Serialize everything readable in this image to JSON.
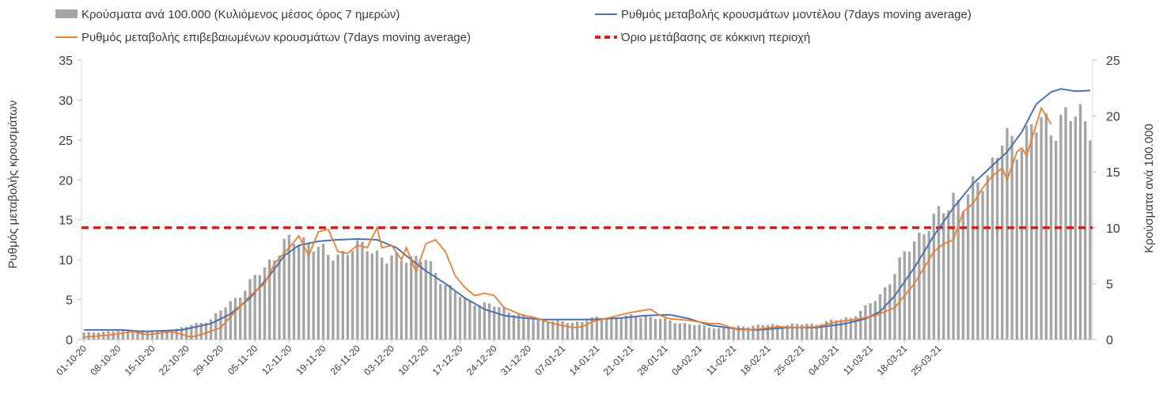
{
  "chart_data": {
    "type": "bar+line",
    "legend": {
      "bars": "Κρούσματα ανά 100.000 (Κυλιόμενος μέσος όρος 7 ημερών)",
      "model": "Ρυθμός μεταβολής κρουσμάτων μοντέλου (7days moving average)",
      "confirmed": "Ρυθμός μεταβολής επιβεβαιωμένων κρουσμάτων (7days moving average)",
      "threshold": "Όριο μετάβασης σε κόκκινη περιοχή"
    },
    "ylabel_left": "Ρυθμός μεταβολής κρουσμάτων",
    "ylabel_right": "Κρούσματα ανά 100.000",
    "ylim_left": [
      0,
      35
    ],
    "yticks_left": [
      "0",
      "5",
      "10",
      "15",
      "20",
      "25",
      "30",
      "35"
    ],
    "ylim_right": [
      0,
      25
    ],
    "yticks_right": [
      "0",
      "5",
      "10",
      "15",
      "20",
      "25"
    ],
    "x_labels": [
      "01-10-20",
      "08-10-20",
      "15-10-20",
      "22-10-20",
      "29-10-20",
      "05-11-20",
      "12-11-20",
      "19-11-20",
      "26-11-20",
      "03-12-20",
      "10-12-20",
      "17-12-20",
      "24-12-20",
      "31-12-20",
      "07-01-21",
      "14-01-21",
      "21-01-21",
      "28-01-21",
      "04-02-21",
      "11-02-21",
      "18-02-21",
      "25-02-21",
      "04-03-21",
      "11-03-21",
      "18-03-21",
      "25-03-21"
    ],
    "threshold_value": 14,
    "bars_keypoints": [
      [
        0,
        0.6
      ],
      [
        8,
        0.8
      ],
      [
        18,
        0.8
      ],
      [
        26,
        1.8
      ],
      [
        33,
        4.5
      ],
      [
        37,
        6.5
      ],
      [
        41,
        8.5
      ],
      [
        45,
        9.0
      ],
      [
        50,
        7.5
      ],
      [
        55,
        8.0
      ],
      [
        58,
        8.5
      ],
      [
        62,
        7.0
      ],
      [
        66,
        7.5
      ],
      [
        70,
        7.0
      ],
      [
        74,
        5.0
      ],
      [
        78,
        3.5
      ],
      [
        84,
        3.0
      ],
      [
        92,
        1.8
      ],
      [
        100,
        1.5
      ],
      [
        106,
        2.0
      ],
      [
        115,
        2.1
      ],
      [
        122,
        1.5
      ],
      [
        130,
        1.0
      ],
      [
        135,
        1.2
      ],
      [
        140,
        1.3
      ],
      [
        150,
        1.4
      ],
      [
        157,
        2.0
      ],
      [
        160,
        2.8
      ],
      [
        163,
        4.0
      ],
      [
        166,
        6.0
      ],
      [
        170,
        9.0
      ],
      [
        175,
        11.0
      ],
      [
        178,
        13.0
      ],
      [
        180,
        12.0
      ],
      [
        183,
        14.0
      ],
      [
        185,
        15.0
      ],
      [
        188,
        17.5
      ],
      [
        191,
        17.5
      ],
      [
        194,
        19.0
      ],
      [
        197,
        19.0
      ],
      [
        200,
        19.8
      ]
    ],
    "model_keypoints": [
      [
        0,
        1.2
      ],
      [
        8,
        1.2
      ],
      [
        12,
        1.0
      ],
      [
        20,
        1.2
      ],
      [
        26,
        2.0
      ],
      [
        30,
        3.2
      ],
      [
        34,
        5.2
      ],
      [
        38,
        8.0
      ],
      [
        41,
        10.5
      ],
      [
        44,
        11.8
      ],
      [
        48,
        12.3
      ],
      [
        52,
        12.5
      ],
      [
        56,
        12.6
      ],
      [
        60,
        12.5
      ],
      [
        64,
        11.5
      ],
      [
        67,
        10.0
      ],
      [
        70,
        8.6
      ],
      [
        74,
        7.0
      ],
      [
        78,
        5.2
      ],
      [
        82,
        3.8
      ],
      [
        86,
        3.0
      ],
      [
        90,
        2.7
      ],
      [
        94,
        2.5
      ],
      [
        104,
        2.5
      ],
      [
        110,
        2.7
      ],
      [
        115,
        3.0
      ],
      [
        120,
        3.1
      ],
      [
        124,
        2.6
      ],
      [
        128,
        1.8
      ],
      [
        134,
        1.3
      ],
      [
        138,
        1.2
      ],
      [
        144,
        1.5
      ],
      [
        150,
        1.5
      ],
      [
        156,
        2.0
      ],
      [
        160,
        2.6
      ],
      [
        163,
        3.5
      ],
      [
        166,
        5.5
      ],
      [
        170,
        9.0
      ],
      [
        174,
        13.0
      ],
      [
        178,
        16.5
      ],
      [
        182,
        19.5
      ],
      [
        186,
        21.8
      ],
      [
        189,
        23.5
      ],
      [
        192,
        26.0
      ],
      [
        195,
        29.5
      ],
      [
        198,
        31.0
      ],
      [
        200,
        31.4
      ],
      [
        203,
        31.1
      ],
      [
        206,
        31.2
      ]
    ],
    "confirmed_keypoints": [
      [
        0,
        0.3
      ],
      [
        6,
        0.6
      ],
      [
        10,
        1.0
      ],
      [
        13,
        0.6
      ],
      [
        18,
        1.0
      ],
      [
        22,
        0.3
      ],
      [
        25,
        0.8
      ],
      [
        28,
        1.5
      ],
      [
        31,
        3.5
      ],
      [
        34,
        5.5
      ],
      [
        37,
        7.0
      ],
      [
        39,
        9.5
      ],
      [
        42,
        11.5
      ],
      [
        44,
        13.0
      ],
      [
        46,
        10.5
      ],
      [
        48,
        13.5
      ],
      [
        50,
        13.8
      ],
      [
        52,
        11.0
      ],
      [
        54,
        10.8
      ],
      [
        56,
        11.8
      ],
      [
        58,
        11.5
      ],
      [
        60,
        14.0
      ],
      [
        61,
        11.5
      ],
      [
        63,
        11.8
      ],
      [
        65,
        10.0
      ],
      [
        66,
        11.5
      ],
      [
        68,
        8.5
      ],
      [
        70,
        12.0
      ],
      [
        72,
        12.5
      ],
      [
        74,
        11.0
      ],
      [
        76,
        8.0
      ],
      [
        78,
        6.5
      ],
      [
        80,
        5.5
      ],
      [
        82,
        5.8
      ],
      [
        84,
        5.5
      ],
      [
        86,
        4.0
      ],
      [
        88,
        3.5
      ],
      [
        90,
        3.0
      ],
      [
        92,
        2.8
      ],
      [
        96,
        2.0
      ],
      [
        100,
        1.5
      ],
      [
        102,
        1.6
      ],
      [
        104,
        2.2
      ],
      [
        108,
        2.8
      ],
      [
        112,
        3.4
      ],
      [
        116,
        3.8
      ],
      [
        118,
        3.0
      ],
      [
        120,
        2.6
      ],
      [
        124,
        2.4
      ],
      [
        128,
        2.0
      ],
      [
        130,
        2.0
      ],
      [
        134,
        1.2
      ],
      [
        138,
        1.3
      ],
      [
        142,
        1.6
      ],
      [
        146,
        1.5
      ],
      [
        150,
        1.6
      ],
      [
        154,
        2.2
      ],
      [
        158,
        2.5
      ],
      [
        162,
        3.0
      ],
      [
        166,
        4.0
      ],
      [
        168,
        5.5
      ],
      [
        170,
        7.0
      ],
      [
        174,
        11.0
      ],
      [
        176,
        12.0
      ],
      [
        178,
        12.5
      ],
      [
        180,
        16.0
      ],
      [
        182,
        17.0
      ],
      [
        184,
        19.0
      ],
      [
        186,
        20.5
      ],
      [
        188,
        21.5
      ],
      [
        189,
        20.0
      ],
      [
        191,
        23.5
      ],
      [
        192,
        24.0
      ],
      [
        193,
        23.0
      ],
      [
        195,
        27.0
      ],
      [
        196,
        29.0
      ],
      [
        197,
        28.0
      ],
      [
        198,
        27.0
      ]
    ]
  }
}
